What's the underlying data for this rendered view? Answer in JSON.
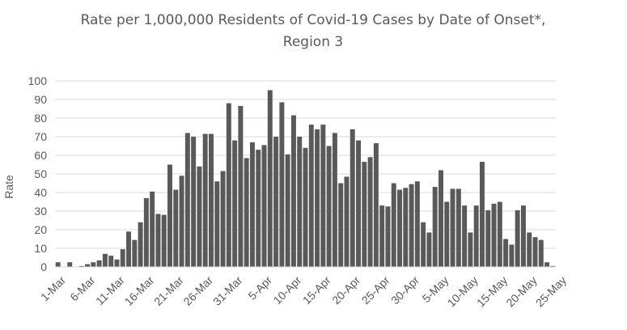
{
  "chart_data": {
    "type": "bar",
    "title_lines": [
      "Rate per 1,000,000 Residents of Covid-19 Cases by Date of Onset*,",
      "Region 3"
    ],
    "xlabel": "",
    "ylabel": "Rate",
    "ylim": [
      0,
      100
    ],
    "yticks": [
      0,
      10,
      20,
      30,
      40,
      50,
      60,
      70,
      80,
      90,
      100
    ],
    "grid": true,
    "legend": "none",
    "bar_color": "#595959",
    "grid_color": "#d9d9d9",
    "x_tick_labels": [
      "1-Mar",
      "6-Mar",
      "11-Mar",
      "16-Mar",
      "21-Mar",
      "26-Mar",
      "31-Mar",
      "5-Apr",
      "10-Apr",
      "15-Apr",
      "20-Apr",
      "25-Apr",
      "30-Apr",
      "5-May",
      "10-May",
      "15-May",
      "20-May",
      "25-May"
    ],
    "x_tick_every": 5,
    "values": [
      2.5,
      0,
      2.5,
      0,
      0.5,
      1.5,
      2.5,
      3.5,
      7,
      6,
      4,
      9.5,
      19,
      14.5,
      24,
      37,
      40.5,
      28.5,
      28,
      55,
      41.5,
      49,
      72,
      70,
      54,
      71.5,
      71.5,
      46,
      51.5,
      88,
      68,
      86.5,
      58.5,
      67,
      63,
      65.5,
      95,
      70,
      88.5,
      60.5,
      81.5,
      70,
      64,
      76.5,
      74,
      76.5,
      65,
      72,
      45,
      48.5,
      74,
      68,
      56.5,
      59,
      66.5,
      33,
      32.5,
      45,
      41.5,
      42.5,
      44.5,
      46,
      24,
      18.5,
      43,
      52,
      35,
      42,
      42,
      33,
      18.5,
      33,
      56.5,
      30.5,
      34,
      35,
      15,
      12,
      30.5,
      33,
      18.5,
      16,
      14.5,
      2.5,
      0.5
    ]
  }
}
